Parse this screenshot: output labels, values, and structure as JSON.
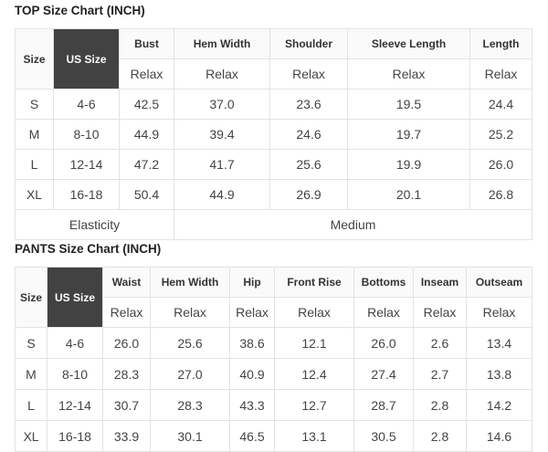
{
  "top": {
    "title": "TOP Size Chart (INCH)",
    "size_label": "Size",
    "us_size_label": "US Size",
    "measures": [
      "Bust",
      "Hem Width",
      "Shoulder",
      "Sleeve Length",
      "Length"
    ],
    "fit": [
      "Relax",
      "Relax",
      "Relax",
      "Relax",
      "Relax"
    ],
    "rows": [
      [
        "S",
        "4-6",
        "42.5",
        "37.0",
        "23.6",
        "19.5",
        "24.4"
      ],
      [
        "M",
        "8-10",
        "44.9",
        "39.4",
        "24.6",
        "19.7",
        "25.2"
      ],
      [
        "L",
        "12-14",
        "47.2",
        "41.7",
        "25.6",
        "19.9",
        "26.0"
      ],
      [
        "XL",
        "16-18",
        "50.4",
        "44.9",
        "26.9",
        "20.1",
        "26.8"
      ]
    ],
    "elasticity_label": "Elasticity",
    "elasticity_value": "Medium"
  },
  "pants": {
    "title": "PANTS Size Chart (INCH)",
    "size_label": "Size",
    "us_size_label": "US Size",
    "measures": [
      "Waist",
      "Hem Width",
      "Hip",
      "Front Rise",
      "Bottoms",
      "Inseam",
      "Outseam"
    ],
    "fit": [
      "Relax",
      "Relax",
      "Relax",
      "Relax",
      "Relax",
      "Relax",
      "Relax"
    ],
    "rows": [
      [
        "S",
        "4-6",
        "26.0",
        "25.6",
        "38.6",
        "12.1",
        "26.0",
        "2.6",
        "13.4"
      ],
      [
        "M",
        "8-10",
        "28.3",
        "27.0",
        "40.9",
        "12.4",
        "27.4",
        "2.7",
        "13.8"
      ],
      [
        "L",
        "12-14",
        "30.7",
        "28.3",
        "43.3",
        "12.7",
        "28.7",
        "2.8",
        "14.2"
      ],
      [
        "XL",
        "16-18",
        "33.9",
        "30.1",
        "46.5",
        "13.1",
        "30.5",
        "2.8",
        "14.6"
      ]
    ]
  },
  "colors": {
    "us_size_header_bg": "#424242",
    "header_bg": "#fafafa",
    "border": "#e3e3e3"
  }
}
